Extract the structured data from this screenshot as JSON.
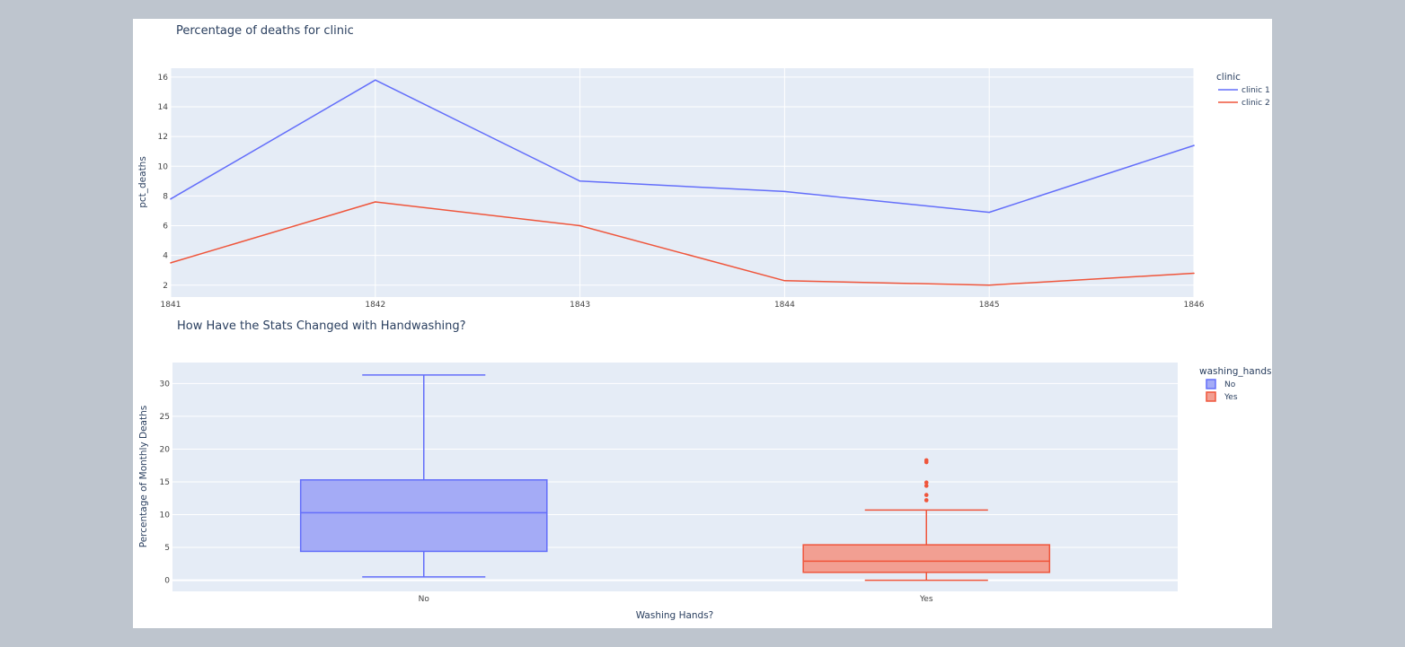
{
  "chart_data": [
    {
      "type": "line",
      "title": "Percentage of deaths for clinic",
      "xlabel": "",
      "ylabel": "pct_deaths",
      "x": [
        1841,
        1842,
        1843,
        1844,
        1845,
        1846
      ],
      "xlim": [
        1841,
        1846
      ],
      "ylim": [
        1.2,
        16.6
      ],
      "yticks": [
        2,
        4,
        6,
        8,
        10,
        12,
        14,
        16
      ],
      "grid": true,
      "legend_title": "clinic",
      "legend_position": "top-right",
      "series": [
        {
          "name": "clinic 1",
          "color": "#636efa",
          "values": [
            7.8,
            15.8,
            9.0,
            8.3,
            6.9,
            11.4
          ]
        },
        {
          "name": "clinic 2",
          "color": "#ef553b",
          "values": [
            3.5,
            7.6,
            6.0,
            2.3,
            2.0,
            2.8
          ]
        }
      ]
    },
    {
      "type": "box",
      "title": "How Have the Stats Changed with Handwashing?",
      "xlabel": "Washing Hands?",
      "ylabel": "Percentage of Monthly Deaths",
      "categories": [
        "No",
        "Yes"
      ],
      "ylim": [
        -1.7,
        33.2
      ],
      "yticks": [
        0,
        5,
        10,
        15,
        20,
        25,
        30
      ],
      "grid": true,
      "legend_title": "washing_hands",
      "legend_position": "top-right",
      "series": [
        {
          "name": "No",
          "color": "#636efa",
          "fill": "#a4abf6",
          "min": 0.5,
          "q1": 4.4,
          "median": 10.3,
          "q3": 15.3,
          "max": 31.3,
          "outliers": []
        },
        {
          "name": "Yes",
          "color": "#ef553b",
          "fill": "#f29f92",
          "min": 0.0,
          "q1": 1.2,
          "median": 2.9,
          "q3": 5.4,
          "max": 10.7,
          "outliers": [
            12.2,
            13.0,
            14.4,
            14.9,
            18.0,
            18.3
          ]
        }
      ]
    }
  ]
}
